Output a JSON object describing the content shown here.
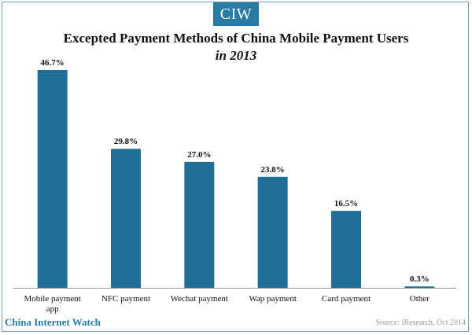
{
  "brand": {
    "badge": "CIW",
    "footer_name": "China Internet Watch"
  },
  "source": "Source: iResearch, Oct 2014",
  "colors": {
    "bar": "#1f6f96",
    "accent": "#2a7ba3"
  },
  "chart_data": {
    "type": "bar",
    "title": "Excepted Payment Methods of China Mobile Payment Users",
    "subtitle": "in 2013",
    "categories": [
      "Mobile payment app",
      "NFC payment",
      "Wechat payment",
      "Wap payment",
      "Card payment",
      "Other"
    ],
    "values": [
      46.7,
      29.8,
      27.0,
      23.8,
      16.5,
      0.3
    ],
    "value_labels": [
      "46.7%",
      "29.8%",
      "27.0%",
      "23.8%",
      "16.5%",
      "0.3%"
    ],
    "xlabel": "",
    "ylabel": "",
    "ylim": [
      0,
      46.7
    ],
    "grid": false,
    "legend": "none"
  }
}
